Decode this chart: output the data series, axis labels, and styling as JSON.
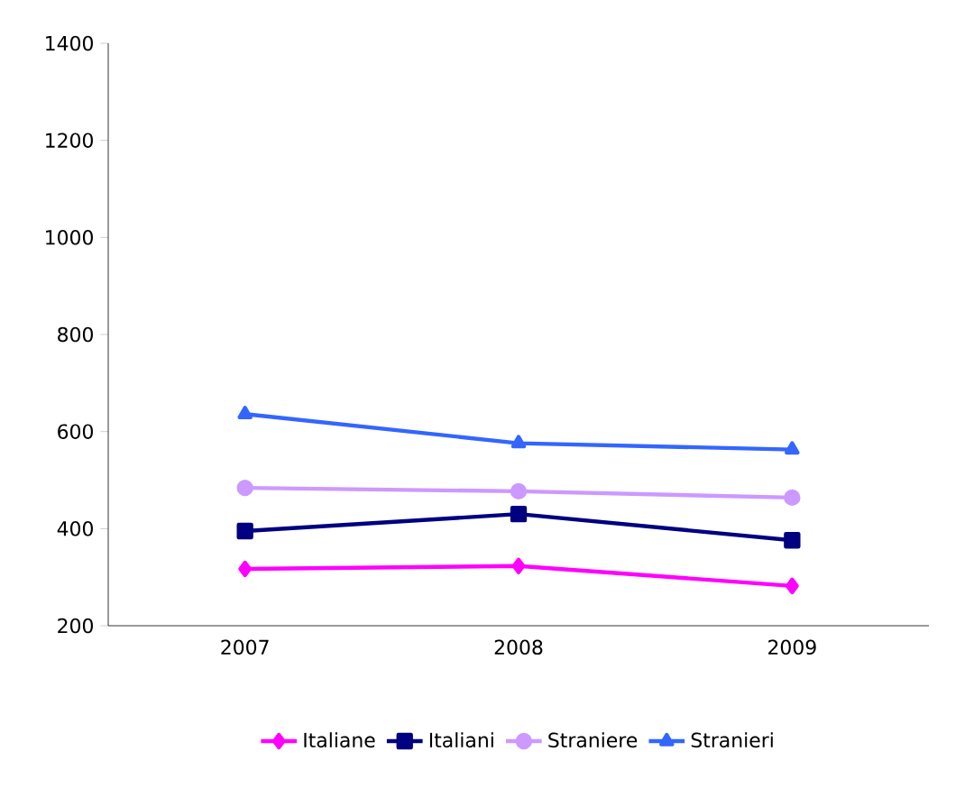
{
  "chart_data": {
    "type": "line",
    "categories": [
      "2007",
      "2008",
      "2009"
    ],
    "series": [
      {
        "name": "Italiane",
        "color": "#ff00ff",
        "marker": "diamond",
        "values": [
          317,
          323,
          282
        ]
      },
      {
        "name": "Italiani",
        "color": "#000080",
        "marker": "square",
        "values": [
          395,
          430,
          376
        ]
      },
      {
        "name": "Straniere",
        "color": "#cc99ff",
        "marker": "circle",
        "values": [
          484,
          477,
          464
        ]
      },
      {
        "name": "Stranieri",
        "color": "#3366ff",
        "marker": "triangle",
        "values": [
          636,
          576,
          563
        ]
      }
    ],
    "ylim": [
      200,
      1400
    ],
    "yticks": [
      200,
      400,
      600,
      800,
      1000,
      1200,
      1400
    ],
    "grid": false,
    "legend": "bottom"
  }
}
